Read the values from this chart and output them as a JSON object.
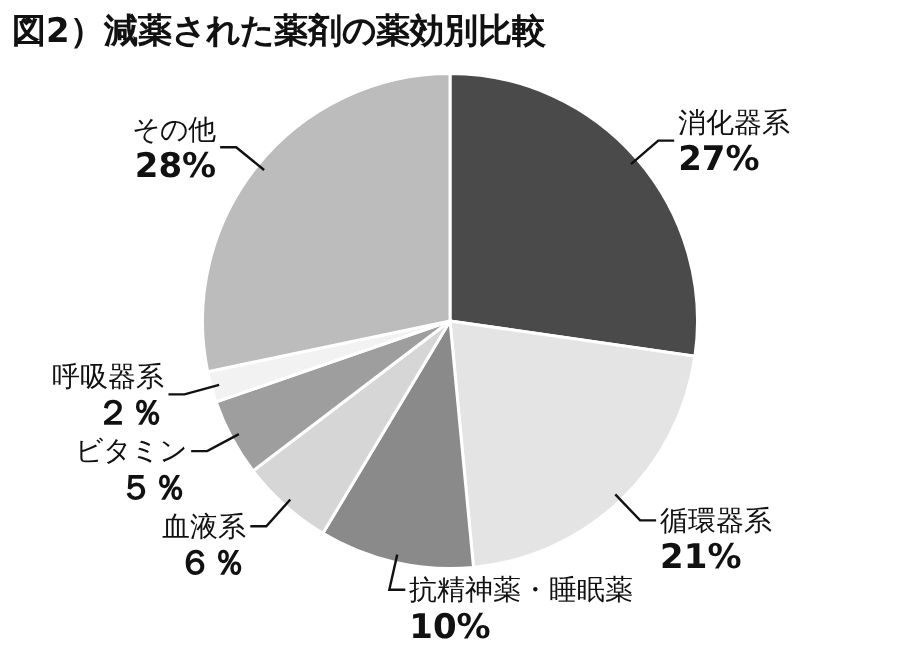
{
  "chart_data": {
    "type": "pie",
    "title": "図2）減薬された薬剤の薬効別比較",
    "categories": [
      "消化器系",
      "循環器系",
      "抗精神薬・睡眠薬",
      "血液系",
      "ビタミン",
      "呼吸器系",
      "その他"
    ],
    "values": [
      27,
      21,
      10,
      6,
      5,
      2,
      28
    ],
    "value_labels": [
      "27%",
      "21%",
      "10%",
      "６％",
      "５％",
      "２％",
      "28%"
    ],
    "colors": [
      "#4a4a4a",
      "#e4e4e4",
      "#8a8a8a",
      "#d6d6d6",
      "#9e9e9e",
      "#f2f2f2",
      "#bcbcbc"
    ],
    "legend": false
  }
}
